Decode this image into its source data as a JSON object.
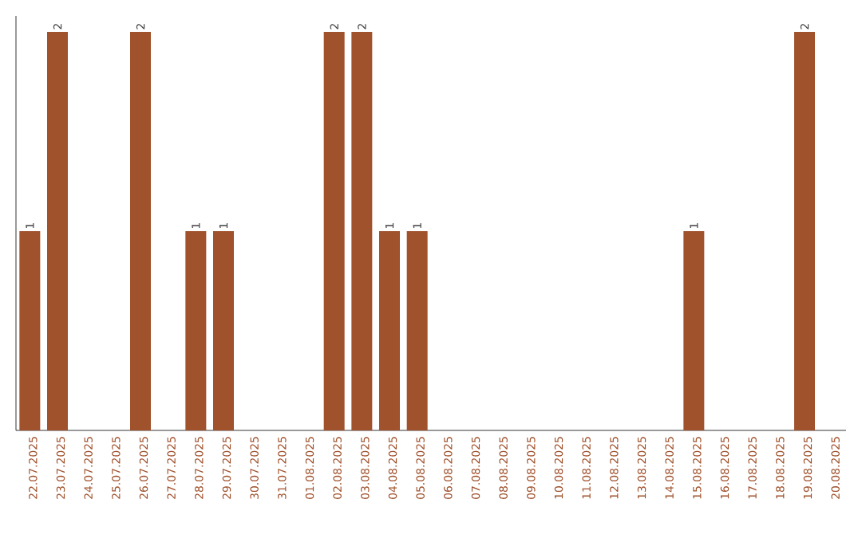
{
  "chart_data": {
    "type": "bar",
    "categories": [
      "22.07.2025",
      "23.07.2025",
      "24.07.2025",
      "25.07.2025",
      "26.07.2025",
      "27.07.2025",
      "28.07.2025",
      "29.07.2025",
      "30.07.2025",
      "31.07.2025",
      "01.08.2025",
      "02.08.2025",
      "03.08.2025",
      "04.08.2025",
      "05.08.2025",
      "06.08.2025",
      "07.08.2025",
      "08.08.2025",
      "09.08.2025",
      "10.08.2025",
      "11.08.2025",
      "12.08.2025",
      "13.08.2025",
      "14.08.2025",
      "15.08.2025",
      "16.08.2025",
      "17.08.2025",
      "18.08.2025",
      "19.08.2025",
      "20.08.2025"
    ],
    "values": [
      1,
      2,
      0,
      0,
      2,
      0,
      1,
      1,
      0,
      0,
      0,
      2,
      2,
      1,
      1,
      0,
      0,
      0,
      0,
      0,
      0,
      0,
      0,
      0,
      1,
      0,
      0,
      0,
      2,
      0
    ],
    "value_labels": [
      "1",
      "2",
      null,
      null,
      "2",
      null,
      "1",
      "1",
      null,
      null,
      null,
      "2",
      "2",
      "1",
      "1",
      null,
      null,
      null,
      null,
      null,
      null,
      null,
      null,
      null,
      "1",
      null,
      null,
      null,
      "2",
      null
    ],
    "color": "#a0522d",
    "grid": false
  }
}
